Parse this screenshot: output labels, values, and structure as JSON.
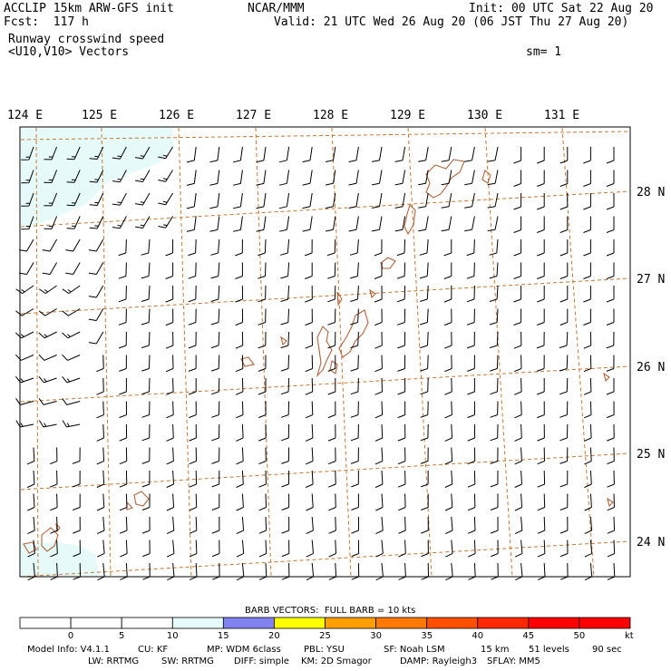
{
  "header": {
    "model_name": "ACCLIP 15km ARW-GFS init",
    "forecast": "Fcst:  117 h",
    "field_name": "Runway crosswind speed",
    "vector_label": "<U10,V10> Vectors",
    "center": "NCAR/MMM",
    "init_time": "Init: 00 UTC Sat 22 Aug 20",
    "valid_time": "Valid: 21 UTC Wed 26 Aug 20 (06 JST Thu 27 Aug 20)",
    "smoothing": "sm= 1"
  },
  "map": {
    "lon_labels": [
      "124 E",
      "125 E",
      "126 E",
      "127 E",
      "128 E",
      "129 E",
      "130 E",
      "131 E"
    ],
    "lat_labels": [
      "28 N",
      "27 N",
      "26 N",
      "25 N",
      "24 N"
    ],
    "colors": {
      "graticule": "#c87832",
      "coast": "#b4643c",
      "barb": "#000000",
      "shade_light": "#e6fafa"
    }
  },
  "colorbar": {
    "title": "BARB VECTORS:  FULL BARB = 10 kts",
    "ticks": [
      "0",
      "5",
      "10",
      "15",
      "20",
      "25",
      "30",
      "35",
      "40",
      "45",
      "50"
    ],
    "unit": "kt",
    "colors": [
      "#ffffff",
      "#ffffff",
      "#ffffff",
      "#e6fafa",
      "#8282f0",
      "#ffff00",
      "#ffa000",
      "#ff7800",
      "#ff5000",
      "#ff2800",
      "#ff0000",
      "#ff0000"
    ]
  },
  "footer": {
    "line1": [
      "Model Info: V4.1.1",
      "CU: KF",
      "MP: WDM 6class",
      "PBL: YSU",
      "SF: Noah LSM",
      "15 km",
      "51 levels",
      "90 sec"
    ],
    "line2": [
      "LW: RRTMG",
      "SW: RRTMG",
      "DIFF: simple",
      "KM: 2D Smagor",
      "DAMP: Rayleigh3",
      "SFLAY: MM5"
    ]
  }
}
